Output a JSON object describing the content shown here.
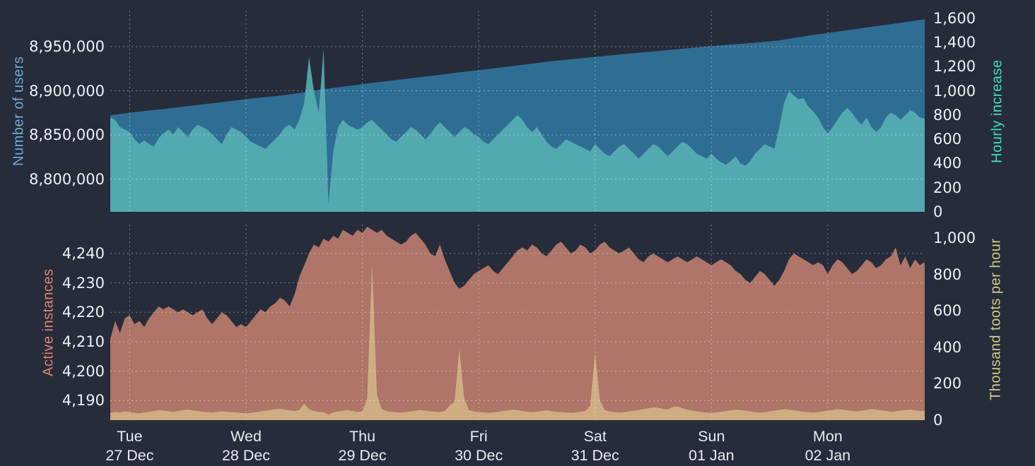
{
  "background_color": "#272c3b",
  "grid_color": "rgba(255,255,255,0.38)",
  "tick_text_color": "#eef0f2",
  "x_axis": {
    "hours_span": 168,
    "gridline_hours": [
      4,
      28,
      52,
      76,
      100,
      124,
      148
    ],
    "labels": [
      {
        "hour": 4,
        "day": "Tue",
        "date": "27 Dec"
      },
      {
        "hour": 28,
        "day": "Wed",
        "date": "28 Dec"
      },
      {
        "hour": 52,
        "day": "Thu",
        "date": "29 Dec"
      },
      {
        "hour": 76,
        "day": "Fri",
        "date": "30 Dec"
      },
      {
        "hour": 100,
        "day": "Sat",
        "date": "31 Dec"
      },
      {
        "hour": 124,
        "day": "Sun",
        "date": "01 Jan"
      },
      {
        "hour": 148,
        "day": "Mon",
        "date": "02 Jan"
      }
    ]
  },
  "chart_data": [
    {
      "type": "area",
      "left_axis": {
        "title": "Number of users",
        "title_color": "#6badd6",
        "range": [
          8762800,
          8990800
        ],
        "ticks": [
          {
            "label": "8,950,000",
            "value": 8950000
          },
          {
            "label": "8,900,000",
            "value": 8900000
          },
          {
            "label": "8,850,000",
            "value": 8850000
          },
          {
            "label": "8,800,000",
            "value": 8800000
          }
        ]
      },
      "right_axis": {
        "title": "Hourly increase",
        "title_color": "#3fe2c0",
        "range": [
          0,
          1664
        ],
        "ticks": [
          {
            "label": "1,600",
            "value": 1600
          },
          {
            "label": "1,400",
            "value": 1400
          },
          {
            "label": "1,200",
            "value": 1200
          },
          {
            "label": "1,000",
            "value": 1000
          },
          {
            "label": "800",
            "value": 800
          },
          {
            "label": "600",
            "value": 600
          },
          {
            "label": "400",
            "value": 400
          },
          {
            "label": "200",
            "value": 200
          },
          {
            "label": "0",
            "value": 0
          }
        ]
      },
      "series": [
        {
          "name": "Number of users",
          "key": "users-area",
          "axis": "left",
          "color": "#2f6e93",
          "opacity": 1,
          "values": [
            8872200,
            8876380,
            8879890,
            8883870,
            8887770,
            8891650,
            8895070,
            8900110,
            8904540,
            8908840,
            8912820,
            8916720,
            8920780,
            8924660,
            8928620,
            8932880,
            8936260,
            8939460,
            8942520,
            8945540,
            8948680,
            8951500,
            8953960,
            8957000,
            8962430,
            8966960,
            8971700,
            8976140,
            8980940
          ]
        },
        {
          "name": "Hourly increase",
          "key": "hourly-increase-area",
          "axis": "right",
          "color": "#59b2b4",
          "opacity": 0.88,
          "values": [
            780,
            760,
            700,
            680,
            660,
            600,
            560,
            590,
            560,
            540,
            610,
            650,
            680,
            640,
            700,
            660,
            620,
            680,
            720,
            700,
            680,
            640,
            600,
            560,
            640,
            700,
            680,
            660,
            620,
            580,
            560,
            540,
            520,
            560,
            600,
            640,
            700,
            720,
            680,
            760,
            900,
            1280,
            1000,
            820,
            1350,
            60,
            500,
            700,
            760,
            720,
            700,
            680,
            700,
            740,
            760,
            720,
            680,
            640,
            600,
            580,
            620,
            660,
            700,
            680,
            640,
            600,
            640,
            700,
            740,
            700,
            660,
            620,
            660,
            700,
            680,
            640,
            620,
            580,
            560,
            600,
            640,
            680,
            720,
            760,
            800,
            760,
            700,
            660,
            700,
            640,
            580,
            540,
            520,
            560,
            600,
            580,
            560,
            540,
            520,
            500,
            560,
            520,
            480,
            460,
            500,
            540,
            560,
            520,
            480,
            440,
            480,
            520,
            560,
            540,
            500,
            460,
            500,
            540,
            580,
            560,
            520,
            480,
            460,
            440,
            480,
            440,
            410,
            390,
            420,
            460,
            400,
            380,
            420,
            480,
            520,
            560,
            540,
            520,
            700,
            900,
            1000,
            960,
            930,
            940,
            870,
            830,
            780,
            700,
            650,
            700,
            760,
            820,
            860,
            820,
            760,
            720,
            780,
            700,
            660,
            700,
            780,
            820,
            800,
            760,
            800,
            840,
            820,
            780,
            770
          ]
        }
      ]
    },
    {
      "type": "area",
      "left_axis": {
        "title": "Active instances",
        "title_color": "#d8886e",
        "range": [
          4183.4,
          4249.8
        ],
        "ticks": [
          {
            "label": "4,240",
            "value": 4240
          },
          {
            "label": "4,230",
            "value": 4230
          },
          {
            "label": "4,220",
            "value": 4220
          },
          {
            "label": "4,210",
            "value": 4210
          },
          {
            "label": "4,200",
            "value": 4200
          },
          {
            "label": "4,190",
            "value": 4190
          }
        ]
      },
      "right_axis": {
        "title": "Thousand toots per hour",
        "title_color": "#d5c985",
        "range": [
          0,
          1075.6
        ],
        "ticks": [
          {
            "label": "1,000",
            "value": 1000
          },
          {
            "label": "800",
            "value": 800
          },
          {
            "label": "600",
            "value": 600
          },
          {
            "label": "400",
            "value": 400
          },
          {
            "label": "200",
            "value": 200
          },
          {
            "label": "0",
            "value": 0
          }
        ]
      },
      "series": [
        {
          "name": "Active instances",
          "key": "instances-area",
          "axis": "left",
          "color": "#ae7568",
          "opacity": 1,
          "values": [
            4211,
            4217,
            4213,
            4218,
            4219,
            4216,
            4217,
            4215,
            4218,
            4220,
            4222,
            4221,
            4222,
            4221,
            4220,
            4221,
            4220,
            4219,
            4220,
            4221,
            4218,
            4216,
            4218,
            4220,
            4219,
            4217,
            4215,
            4216,
            4215,
            4217,
            4219,
            4221,
            4220,
            4222,
            4223,
            4225,
            4224,
            4222,
            4226,
            4232,
            4236,
            4240,
            4243,
            4242,
            4245,
            4244,
            4246,
            4245,
            4248,
            4247,
            4246,
            4248,
            4247,
            4249,
            4248,
            4247,
            4248,
            4246,
            4245,
            4244,
            4243,
            4244,
            4246,
            4247,
            4245,
            4243,
            4240,
            4239,
            4243,
            4238,
            4234,
            4230,
            4228,
            4229,
            4231,
            4233,
            4234,
            4235,
            4236,
            4234,
            4233,
            4235,
            4237,
            4239,
            4241,
            4242,
            4241,
            4243,
            4242,
            4240,
            4239,
            4241,
            4243,
            4244,
            4242,
            4240,
            4241,
            4243,
            4242,
            4240,
            4241,
            4243,
            4244,
            4242,
            4241,
            4240,
            4241,
            4242,
            4240,
            4238,
            4237,
            4239,
            4240,
            4239,
            4238,
            4237,
            4238,
            4239,
            4238,
            4237,
            4238,
            4239,
            4238,
            4237,
            4236,
            4237,
            4238,
            4237,
            4236,
            4234,
            4233,
            4231,
            4230,
            4232,
            4234,
            4233,
            4231,
            4229,
            4231,
            4234,
            4238,
            4240,
            4239,
            4238,
            4237,
            4236,
            4237,
            4236,
            4233,
            4236,
            4238,
            4237,
            4235,
            4233,
            4234,
            4236,
            4238,
            4237,
            4235,
            4236,
            4238,
            4239,
            4242,
            4236,
            4239,
            4235,
            4238,
            4236,
            4237
          ]
        },
        {
          "name": "Thousand toots per hour",
          "key": "toots-area",
          "axis": "right",
          "color": "#d1b085",
          "opacity": 0.95,
          "values": [
            40,
            45,
            42,
            48,
            44,
            40,
            38,
            42,
            46,
            50,
            55,
            52,
            48,
            45,
            50,
            55,
            58,
            54,
            50,
            46,
            44,
            42,
            45,
            48,
            46,
            44,
            42,
            40,
            38,
            40,
            44,
            48,
            52,
            56,
            60,
            62,
            58,
            54,
            50,
            55,
            90,
            60,
            50,
            46,
            44,
            30,
            42,
            48,
            52,
            55,
            50,
            46,
            48,
            120,
            860,
            140,
            60,
            50,
            46,
            44,
            42,
            44,
            48,
            52,
            55,
            52,
            48,
            46,
            44,
            50,
            80,
            100,
            390,
            120,
            55,
            48,
            44,
            42,
            40,
            42,
            46,
            50,
            54,
            58,
            55,
            50,
            46,
            44,
            46,
            50,
            54,
            50,
            46,
            44,
            42,
            40,
            42,
            46,
            50,
            80,
            370,
            110,
            55,
            48,
            44,
            42,
            44,
            48,
            52,
            55,
            60,
            65,
            70,
            68,
            62,
            58,
            72,
            75,
            66,
            58,
            52,
            48,
            44,
            42,
            40,
            42,
            46,
            50,
            54,
            58,
            55,
            52,
            48,
            44,
            42,
            44,
            48,
            52,
            56,
            60,
            58,
            54,
            50,
            46,
            44,
            42,
            44,
            48,
            52,
            56,
            60,
            58,
            54,
            50,
            48,
            52,
            56,
            60,
            58,
            54,
            50,
            46,
            48,
            52,
            55,
            58,
            54,
            50,
            52
          ]
        }
      ]
    }
  ]
}
